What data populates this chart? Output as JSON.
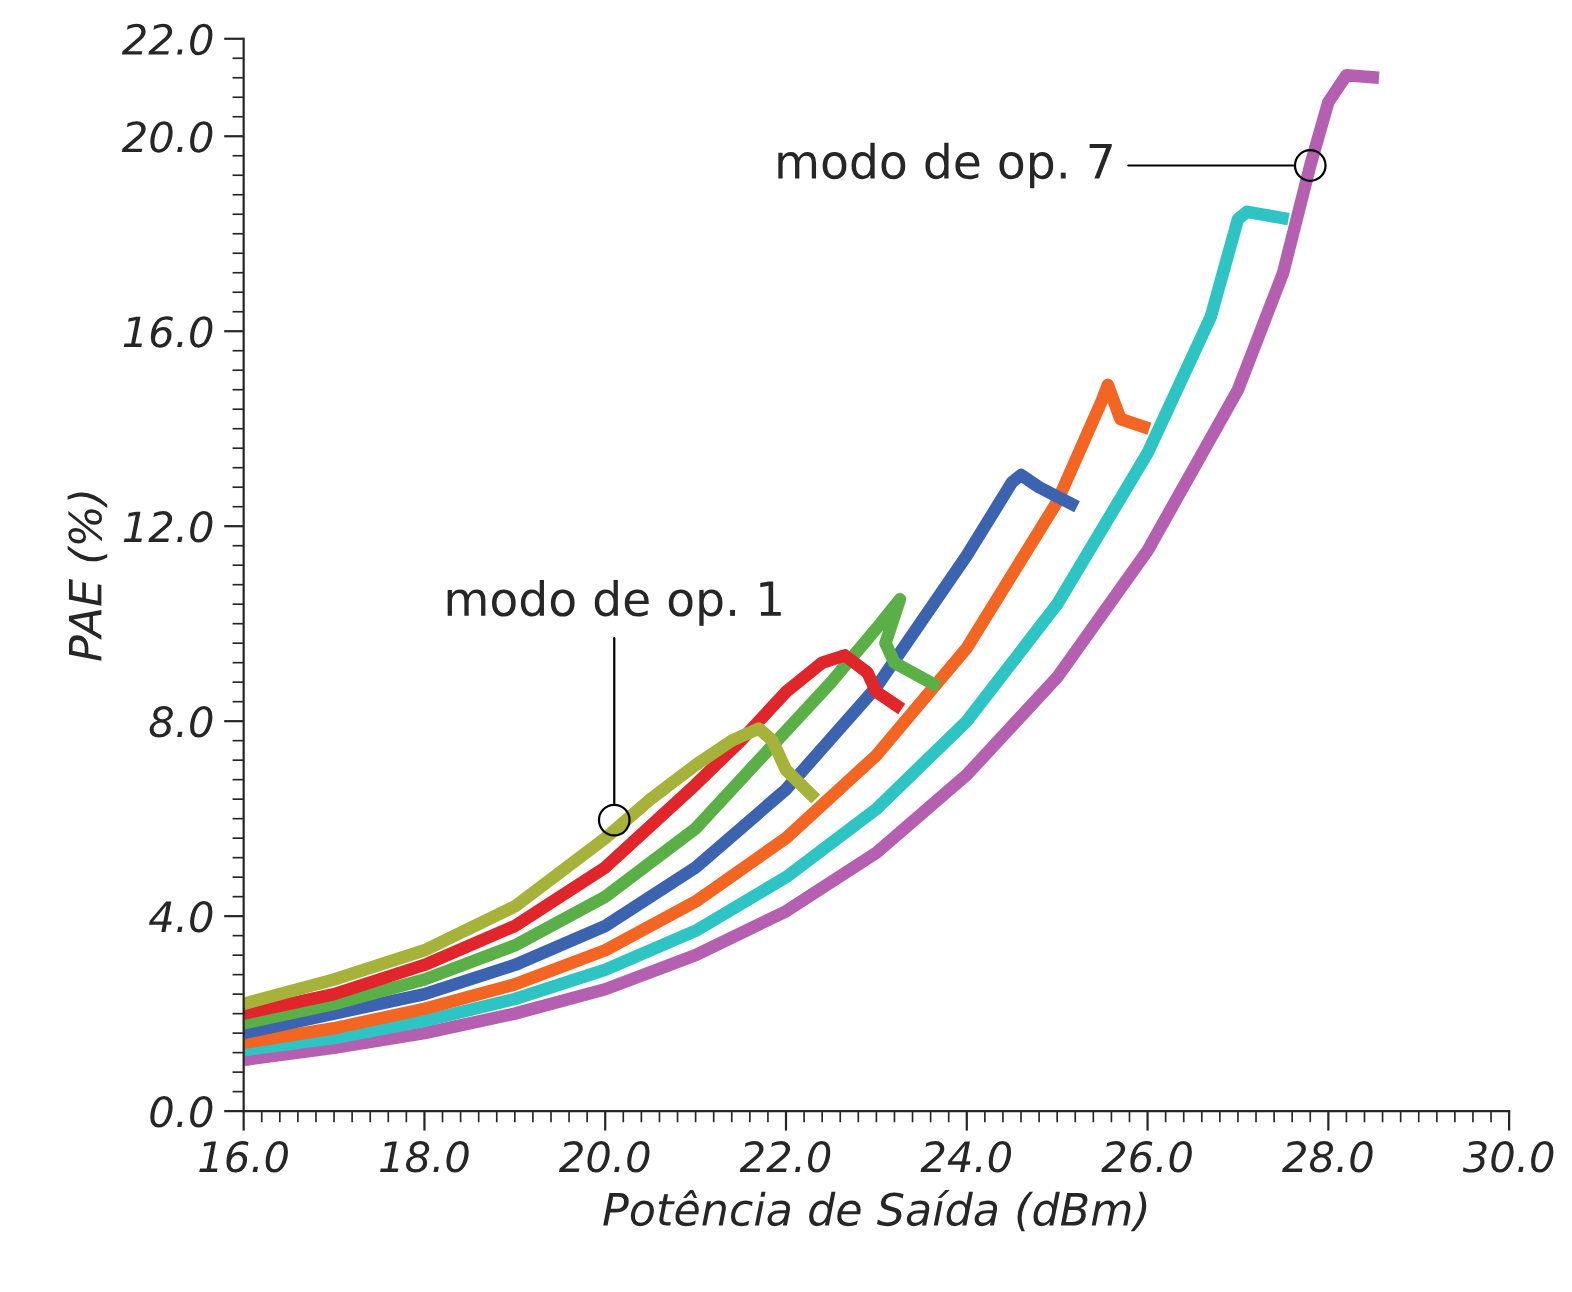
{
  "chart_data": {
    "type": "line",
    "xlabel": "Potência de Saída (dBm)",
    "ylabel": "PAE (%)",
    "xlim": [
      16,
      30
    ],
    "ylim": [
      0,
      22
    ],
    "xticks": [
      {
        "value": 16,
        "label": "16.0"
      },
      {
        "value": 18,
        "label": "18.0"
      },
      {
        "value": 20,
        "label": "20.0"
      },
      {
        "value": 22,
        "label": "22.0"
      },
      {
        "value": 24,
        "label": "24.0"
      },
      {
        "value": 26,
        "label": "26.0"
      },
      {
        "value": 28,
        "label": "28.0"
      },
      {
        "value": 30,
        "label": "30.0"
      }
    ],
    "yticks": [
      {
        "value": 0,
        "label": "0.0"
      },
      {
        "value": 4,
        "label": "4.0"
      },
      {
        "value": 8,
        "label": "8.0"
      },
      {
        "value": 12,
        "label": "12.0"
      },
      {
        "value": 16,
        "label": "16.0"
      },
      {
        "value": 20,
        "label": "20.0"
      },
      {
        "value": 22,
        "label": "22.0"
      }
    ],
    "grid": false,
    "legend": false,
    "marker": "none",
    "line_style": "solid",
    "series": [
      {
        "color": "#b55fb0",
        "x": [
          16,
          17,
          18,
          19,
          20,
          21,
          22,
          23,
          24,
          25,
          26,
          27,
          27.5,
          27.8,
          28.0,
          28.2,
          28.56
        ],
        "values": [
          1.05,
          1.3,
          1.6,
          2.0,
          2.5,
          3.2,
          4.1,
          5.3,
          6.9,
          8.9,
          11.5,
          14.8,
          17.2,
          19.4,
          20.7,
          21.25,
          21.2
        ]
      },
      {
        "color": "#2ec4c4",
        "x": [
          16,
          17,
          18,
          19,
          20,
          21,
          22,
          23,
          24,
          25,
          26,
          26.7,
          27.0,
          27.1,
          27.56
        ],
        "values": [
          1.25,
          1.5,
          1.85,
          2.3,
          2.9,
          3.7,
          4.8,
          6.2,
          8.0,
          10.4,
          13.5,
          16.3,
          18.3,
          18.45,
          18.3
        ]
      },
      {
        "color": "#f26522",
        "x": [
          16,
          17,
          18,
          19,
          20,
          21,
          22,
          23,
          24,
          25,
          25.5,
          25.56,
          25.7,
          26.02
        ],
        "values": [
          1.4,
          1.7,
          2.1,
          2.6,
          3.3,
          4.3,
          5.6,
          7.3,
          9.5,
          12.5,
          14.6,
          14.9,
          14.2,
          14.0
        ]
      },
      {
        "color": "#3c63b0",
        "x": [
          16,
          17,
          18,
          19,
          20,
          21,
          22,
          23,
          24,
          24.5,
          24.6,
          24.8,
          25.22
        ],
        "values": [
          1.6,
          2.0,
          2.4,
          3.0,
          3.8,
          5.0,
          6.6,
          8.7,
          11.4,
          12.9,
          13.05,
          12.8,
          12.4
        ]
      },
      {
        "color": "#5aaf47",
        "x": [
          16,
          17,
          18,
          19,
          20,
          21,
          22,
          22.5,
          23.0,
          23.26,
          23.1,
          23.2,
          23.69
        ],
        "values": [
          1.8,
          2.2,
          2.7,
          3.4,
          4.4,
          5.8,
          7.8,
          8.8,
          9.9,
          10.5,
          9.6,
          9.2,
          8.7
        ]
      },
      {
        "color": "#e0262b",
        "x": [
          16,
          17,
          18,
          19,
          20,
          21,
          21.5,
          22,
          22.4,
          22.65,
          22.9,
          23.0,
          23.28
        ],
        "values": [
          2.0,
          2.4,
          3.0,
          3.8,
          5.0,
          6.7,
          7.6,
          8.6,
          9.2,
          9.35,
          9.0,
          8.6,
          8.25
        ]
      },
      {
        "color": "#a6b23a",
        "x": [
          16,
          17,
          18,
          19,
          20,
          20.5,
          21,
          21.4,
          21.7,
          21.85,
          22.0,
          22.33
        ],
        "values": [
          2.2,
          2.7,
          3.3,
          4.2,
          5.6,
          6.4,
          7.1,
          7.6,
          7.85,
          7.6,
          7.0,
          6.4
        ]
      }
    ],
    "annotations": [
      {
        "text": "modo de op. 1",
        "x": 20.1,
        "y": 5.97
      },
      {
        "text": "modo de op. 7",
        "x": 27.8,
        "y": 19.4
      }
    ]
  }
}
